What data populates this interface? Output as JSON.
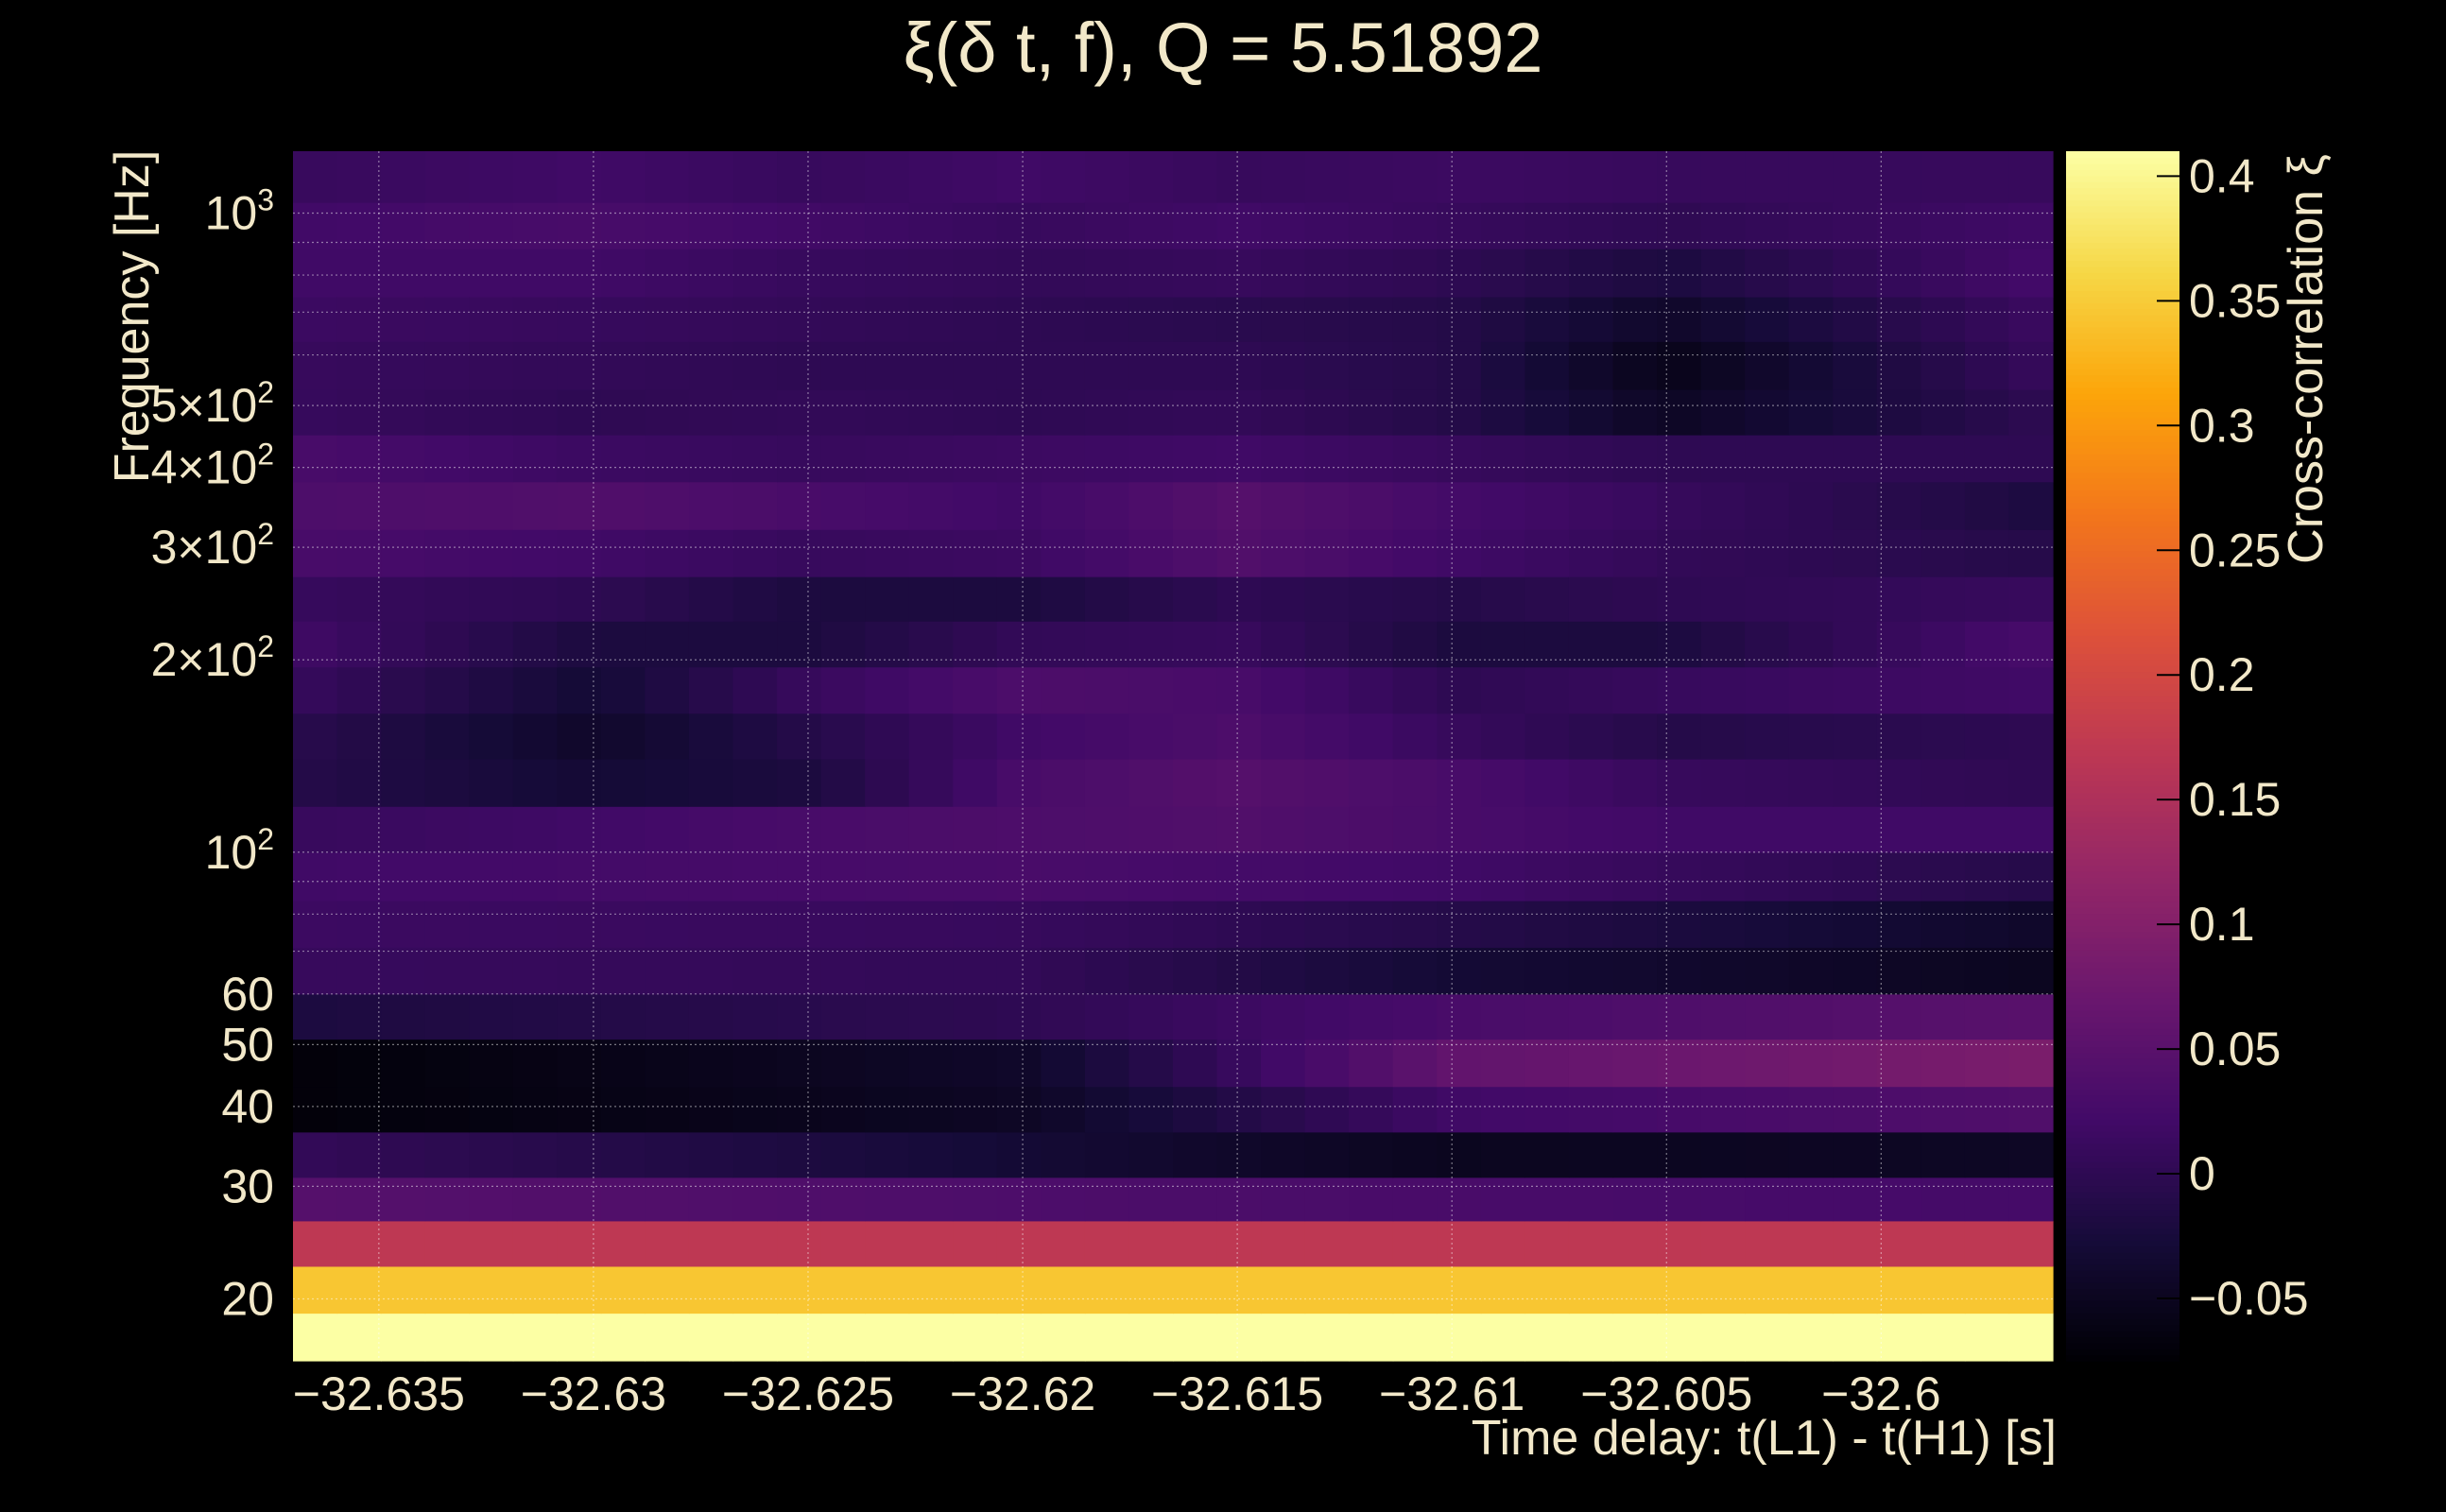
{
  "chart_data": {
    "type": "heatmap",
    "title": "ξ(δ t, f), Q = 5.51892",
    "xlabel": "Time delay: t(L1) - t(H1) [s]",
    "ylabel": "Frequency [Hz]",
    "colorbar_label": "Cross-correlation ξ",
    "xlim": [
      -32.637,
      -32.596
    ],
    "ylim": [
      16,
      1250
    ],
    "y_scale": "log",
    "grid": true,
    "colormap": "inferno",
    "colorbar_range": [
      -0.075,
      0.41
    ],
    "colorbar_ticks": [
      {
        "value": -0.05,
        "label": "−0.05"
      },
      {
        "value": 0,
        "label": "0"
      },
      {
        "value": 0.05,
        "label": "0.05"
      },
      {
        "value": 0.1,
        "label": "0.1"
      },
      {
        "value": 0.15,
        "label": "0.15"
      },
      {
        "value": 0.2,
        "label": "0.2"
      },
      {
        "value": 0.25,
        "label": "0.25"
      },
      {
        "value": 0.3,
        "label": "0.3"
      },
      {
        "value": 0.35,
        "label": "0.35"
      },
      {
        "value": 0.4,
        "label": "0.4"
      }
    ],
    "x_ticks": [
      {
        "value": -32.635,
        "label": "−32.635"
      },
      {
        "value": -32.63,
        "label": "−32.63"
      },
      {
        "value": -32.625,
        "label": "−32.625"
      },
      {
        "value": -32.62,
        "label": "−32.62"
      },
      {
        "value": -32.615,
        "label": "−32.615"
      },
      {
        "value": -32.61,
        "label": "−32.61"
      },
      {
        "value": -32.605,
        "label": "−32.605"
      },
      {
        "value": -32.6,
        "label": "−32.6"
      }
    ],
    "y_ticks": [
      {
        "value": 20,
        "label": "20"
      },
      {
        "value": 30,
        "label": "30"
      },
      {
        "value": 40,
        "label": "40"
      },
      {
        "value": 50,
        "label": "50"
      },
      {
        "value": 60,
        "label": "60"
      },
      {
        "value": 100,
        "label": "10",
        "sup": "2"
      },
      {
        "value": 200,
        "label": "2×10",
        "sup": "2"
      },
      {
        "value": 300,
        "label": "3×10",
        "sup": "2"
      },
      {
        "value": 400,
        "label": "4×10",
        "sup": "2"
      },
      {
        "value": 500,
        "label": "5×10",
        "sup": "2"
      },
      {
        "value": 1000,
        "label": "10",
        "sup": "3"
      }
    ],
    "y_minor_ticks": [
      70,
      80,
      90,
      600,
      700,
      800,
      900
    ],
    "rows": [
      {
        "f_low": 16,
        "f_high": 19,
        "x": [
          -32.637,
          -32.596
        ],
        "values": [
          0.41,
          0.41
        ]
      },
      {
        "f_low": 19,
        "f_high": 22.5,
        "x": [
          -32.637,
          -32.596
        ],
        "values": [
          0.345,
          0.345
        ]
      },
      {
        "f_low": 22.5,
        "f_high": 26.5,
        "x": [
          -32.637,
          -32.596
        ],
        "values": [
          0.17,
          0.17
        ]
      },
      {
        "f_low": 26.5,
        "f_high": 31,
        "x": [
          -32.637,
          -32.62,
          -32.61,
          -32.596
        ],
        "values": [
          0.045,
          0.035,
          0.03,
          0.025
        ]
      },
      {
        "f_low": 31,
        "f_high": 36.5,
        "x": [
          -32.637,
          -32.62,
          -32.61,
          -32.596
        ],
        "values": [
          0.005,
          -0.03,
          -0.05,
          -0.045
        ]
      },
      {
        "f_low": 36.5,
        "f_high": 43,
        "x": [
          -32.637,
          -32.62,
          -32.61,
          -32.596
        ],
        "values": [
          -0.07,
          -0.045,
          0.02,
          0.04
        ]
      },
      {
        "f_low": 43,
        "f_high": 51,
        "x": [
          -32.637,
          -32.62,
          -32.61,
          -32.596
        ],
        "values": [
          -0.07,
          -0.04,
          0.06,
          0.09
        ]
      },
      {
        "f_low": 51,
        "f_high": 60,
        "x": [
          -32.637,
          -32.62,
          -32.61,
          -32.596
        ],
        "values": [
          -0.02,
          0.0,
          0.03,
          0.05
        ]
      },
      {
        "f_low": 60,
        "f_high": 71,
        "x": [
          -32.637,
          -32.62,
          -32.61,
          -32.596
        ],
        "values": [
          0.01,
          0.005,
          -0.03,
          -0.05
        ]
      },
      {
        "f_low": 71,
        "f_high": 84,
        "x": [
          -32.637,
          -32.62,
          -32.61,
          -32.596
        ],
        "values": [
          0.015,
          0.01,
          -0.01,
          -0.04
        ]
      },
      {
        "f_low": 84,
        "f_high": 100,
        "x": [
          -32.637,
          -32.62,
          -32.61,
          -32.596
        ],
        "values": [
          0.02,
          0.03,
          0.02,
          -0.01
        ]
      },
      {
        "f_low": 100,
        "f_high": 118,
        "x": [
          -32.637,
          -32.63,
          -32.625,
          -32.62,
          -32.615,
          -32.61,
          -32.605,
          -32.596
        ],
        "values": [
          0.01,
          0.02,
          0.03,
          0.035,
          0.04,
          0.03,
          0.02,
          0.02
        ]
      },
      {
        "f_low": 118,
        "f_high": 140,
        "x": [
          -32.637,
          -32.63,
          -32.625,
          -32.62,
          -32.615,
          -32.61,
          -32.605,
          -32.596
        ],
        "values": [
          -0.01,
          -0.03,
          -0.02,
          0.03,
          0.045,
          0.03,
          0.01,
          0.0
        ]
      },
      {
        "f_low": 140,
        "f_high": 165,
        "x": [
          -32.637,
          -32.63,
          -32.625,
          -32.62,
          -32.615,
          -32.61,
          -32.605,
          -32.596
        ],
        "values": [
          -0.005,
          -0.04,
          -0.01,
          0.02,
          0.035,
          0.01,
          -0.01,
          0.0
        ]
      },
      {
        "f_low": 165,
        "f_high": 195,
        "x": [
          -32.637,
          -32.63,
          -32.625,
          -32.62,
          -32.615,
          -32.61,
          -32.605,
          -32.596
        ],
        "values": [
          0.01,
          -0.03,
          0.01,
          0.035,
          0.03,
          0.0,
          0.01,
          0.02
        ]
      },
      {
        "f_low": 195,
        "f_high": 230,
        "x": [
          -32.637,
          -32.63,
          -32.625,
          -32.62,
          -32.615,
          -32.61,
          -32.605,
          -32.596
        ],
        "values": [
          0.02,
          -0.02,
          -0.02,
          0.005,
          0.01,
          -0.02,
          -0.02,
          0.03
        ]
      },
      {
        "f_low": 230,
        "f_high": 270,
        "x": [
          -32.637,
          -32.63,
          -32.625,
          -32.62,
          -32.615,
          -32.61,
          -32.605,
          -32.596
        ],
        "values": [
          0.01,
          0.0,
          -0.02,
          -0.02,
          0.0,
          -0.01,
          0.0,
          0.01
        ]
      },
      {
        "f_low": 270,
        "f_high": 320,
        "x": [
          -32.637,
          -32.63,
          -32.625,
          -32.62,
          -32.615,
          -32.61,
          -32.605,
          -32.596
        ],
        "values": [
          0.03,
          0.02,
          0.01,
          0.015,
          0.04,
          0.02,
          0.005,
          -0.01
        ]
      },
      {
        "f_low": 320,
        "f_high": 380,
        "x": [
          -32.637,
          -32.63,
          -32.625,
          -32.62,
          -32.615,
          -32.61,
          -32.605,
          -32.596
        ],
        "values": [
          0.035,
          0.04,
          0.03,
          0.02,
          0.045,
          0.025,
          0.01,
          -0.02
        ]
      },
      {
        "f_low": 380,
        "f_high": 450,
        "x": [
          -32.637,
          -32.63,
          -32.625,
          -32.62,
          -32.615,
          -32.61,
          -32.605,
          -32.596
        ],
        "values": [
          0.03,
          0.015,
          0.01,
          0.015,
          0.02,
          0.01,
          0.0,
          0.0
        ]
      },
      {
        "f_low": 450,
        "f_high": 530,
        "x": [
          -32.637,
          -32.63,
          -32.625,
          -32.62,
          -32.615,
          -32.61,
          -32.605,
          -32.596
        ],
        "values": [
          0.01,
          0.0,
          0.005,
          0.0,
          0.005,
          -0.01,
          -0.045,
          0.0
        ]
      },
      {
        "f_low": 530,
        "f_high": 630,
        "x": [
          -32.637,
          -32.63,
          -32.625,
          -32.62,
          -32.615,
          -32.61,
          -32.605,
          -32.596
        ],
        "values": [
          0.01,
          0.005,
          0.0,
          0.0,
          0.0,
          -0.01,
          -0.055,
          0.01
        ]
      },
      {
        "f_low": 630,
        "f_high": 740,
        "x": [
          -32.637,
          -32.63,
          -32.625,
          -32.62,
          -32.615,
          -32.61,
          -32.605,
          -32.596
        ],
        "values": [
          0.015,
          0.01,
          0.005,
          0.0,
          -0.005,
          -0.01,
          -0.04,
          0.015
        ]
      },
      {
        "f_low": 740,
        "f_high": 880,
        "x": [
          -32.637,
          -32.63,
          -32.625,
          -32.62,
          -32.615,
          -32.61,
          -32.605,
          -32.596
        ],
        "values": [
          0.02,
          0.02,
          0.01,
          0.005,
          0.01,
          0.0,
          -0.02,
          0.025
        ]
      },
      {
        "f_low": 880,
        "f_high": 1040,
        "x": [
          -32.637,
          -32.63,
          -32.625,
          -32.62,
          -32.615,
          -32.61,
          -32.605,
          -32.596
        ],
        "values": [
          0.02,
          0.03,
          0.02,
          0.01,
          0.02,
          0.01,
          0.0,
          0.02
        ]
      },
      {
        "f_low": 1040,
        "f_high": 1250,
        "x": [
          -32.637,
          -32.63,
          -32.625,
          -32.62,
          -32.615,
          -32.61,
          -32.605,
          -32.596
        ],
        "values": [
          0.01,
          0.02,
          0.01,
          0.02,
          0.01,
          0.015,
          0.01,
          0.01
        ]
      }
    ]
  }
}
